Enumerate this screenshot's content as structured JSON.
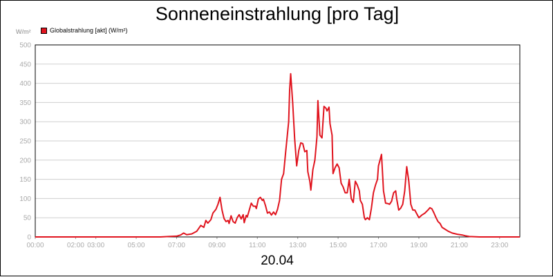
{
  "chart_data": {
    "type": "line",
    "title": "Sonneneinstrahlung [pro Tag]",
    "unit": "W/m²",
    "date": "20.04",
    "series": [
      {
        "name": "Globalstrahlung [akt] (W/m²)",
        "color": "#e0141e",
        "points": [
          [
            0,
            0
          ],
          [
            6.2,
            0
          ],
          [
            6.6,
            1
          ],
          [
            7.0,
            2
          ],
          [
            7.2,
            5
          ],
          [
            7.35,
            10
          ],
          [
            7.5,
            6
          ],
          [
            7.75,
            8
          ],
          [
            8.0,
            15
          ],
          [
            8.2,
            30
          ],
          [
            8.35,
            25
          ],
          [
            8.45,
            43
          ],
          [
            8.55,
            36
          ],
          [
            8.7,
            45
          ],
          [
            8.8,
            62
          ],
          [
            8.95,
            72
          ],
          [
            9.05,
            85
          ],
          [
            9.15,
            103
          ],
          [
            9.25,
            70
          ],
          [
            9.35,
            48
          ],
          [
            9.45,
            40
          ],
          [
            9.55,
            43
          ],
          [
            9.6,
            35
          ],
          [
            9.7,
            55
          ],
          [
            9.8,
            40
          ],
          [
            9.9,
            36
          ],
          [
            10.0,
            50
          ],
          [
            10.1,
            58
          ],
          [
            10.2,
            47
          ],
          [
            10.3,
            58
          ],
          [
            10.35,
            37
          ],
          [
            10.45,
            56
          ],
          [
            10.5,
            52
          ],
          [
            10.6,
            70
          ],
          [
            10.7,
            88
          ],
          [
            10.8,
            80
          ],
          [
            10.9,
            80
          ],
          [
            10.95,
            74
          ],
          [
            11.05,
            99
          ],
          [
            11.15,
            103
          ],
          [
            11.25,
            95
          ],
          [
            11.3,
            98
          ],
          [
            11.4,
            82
          ],
          [
            11.5,
            62
          ],
          [
            11.6,
            65
          ],
          [
            11.7,
            57
          ],
          [
            11.8,
            65
          ],
          [
            11.9,
            58
          ],
          [
            12.0,
            72
          ],
          [
            12.1,
            95
          ],
          [
            12.2,
            150
          ],
          [
            12.3,
            165
          ],
          [
            12.4,
            220
          ],
          [
            12.55,
            300
          ],
          [
            12.6,
            382
          ],
          [
            12.65,
            425
          ],
          [
            12.75,
            350
          ],
          [
            12.85,
            255
          ],
          [
            12.95,
            185
          ],
          [
            13.05,
            225
          ],
          [
            13.15,
            245
          ],
          [
            13.25,
            243
          ],
          [
            13.35,
            222
          ],
          [
            13.45,
            225
          ],
          [
            13.5,
            170
          ],
          [
            13.6,
            145
          ],
          [
            13.65,
            122
          ],
          [
            13.75,
            175
          ],
          [
            13.85,
            200
          ],
          [
            13.95,
            260
          ],
          [
            14.0,
            355
          ],
          [
            14.1,
            265
          ],
          [
            14.2,
            258
          ],
          [
            14.3,
            340
          ],
          [
            14.4,
            335
          ],
          [
            14.45,
            328
          ],
          [
            14.55,
            338
          ],
          [
            14.6,
            295
          ],
          [
            14.7,
            265
          ],
          [
            14.75,
            165
          ],
          [
            14.85,
            180
          ],
          [
            14.95,
            190
          ],
          [
            15.05,
            180
          ],
          [
            15.15,
            140
          ],
          [
            15.25,
            130
          ],
          [
            15.35,
            115
          ],
          [
            15.45,
            115
          ],
          [
            15.55,
            150
          ],
          [
            15.65,
            100
          ],
          [
            15.75,
            90
          ],
          [
            15.85,
            145
          ],
          [
            15.95,
            135
          ],
          [
            16.05,
            120
          ],
          [
            16.1,
            95
          ],
          [
            16.2,
            85
          ],
          [
            16.3,
            50
          ],
          [
            16.35,
            45
          ],
          [
            16.45,
            50
          ],
          [
            16.55,
            45
          ],
          [
            16.65,
            75
          ],
          [
            16.75,
            115
          ],
          [
            16.85,
            135
          ],
          [
            16.95,
            150
          ],
          [
            17.0,
            185
          ],
          [
            17.1,
            205
          ],
          [
            17.15,
            215
          ],
          [
            17.25,
            120
          ],
          [
            17.35,
            88
          ],
          [
            17.45,
            87
          ],
          [
            17.55,
            85
          ],
          [
            17.65,
            93
          ],
          [
            17.75,
            115
          ],
          [
            17.85,
            120
          ],
          [
            17.9,
            100
          ],
          [
            18.0,
            70
          ],
          [
            18.1,
            75
          ],
          [
            18.2,
            85
          ],
          [
            18.3,
            120
          ],
          [
            18.4,
            183
          ],
          [
            18.5,
            145
          ],
          [
            18.6,
            85
          ],
          [
            18.7,
            70
          ],
          [
            18.8,
            70
          ],
          [
            18.9,
            60
          ],
          [
            19.0,
            50
          ],
          [
            19.15,
            57
          ],
          [
            19.3,
            62
          ],
          [
            19.45,
            70
          ],
          [
            19.55,
            76
          ],
          [
            19.65,
            73
          ],
          [
            19.75,
            62
          ],
          [
            19.85,
            50
          ],
          [
            19.95,
            40
          ],
          [
            20.05,
            35
          ],
          [
            20.15,
            25
          ],
          [
            20.3,
            20
          ],
          [
            20.45,
            15
          ],
          [
            20.65,
            10
          ],
          [
            20.9,
            7
          ],
          [
            21.15,
            5
          ],
          [
            21.3,
            3
          ],
          [
            21.5,
            1
          ],
          [
            22.0,
            0
          ],
          [
            24,
            0
          ]
        ]
      }
    ],
    "xlim": [
      0,
      24
    ],
    "ylim": [
      0,
      500
    ],
    "yticks": [
      0,
      50,
      100,
      150,
      200,
      250,
      300,
      350,
      400,
      450,
      500
    ],
    "xticks": [
      {
        "value": 0,
        "label": "00:00"
      },
      {
        "value": 2,
        "label": "02:00"
      },
      {
        "value": 3,
        "label": "03:00"
      },
      {
        "value": 5,
        "label": "05:00"
      },
      {
        "value": 7,
        "label": "07:00"
      },
      {
        "value": 9,
        "label": "09:00"
      },
      {
        "value": 11,
        "label": "11:00"
      },
      {
        "value": 13,
        "label": "13:00"
      },
      {
        "value": 15,
        "label": "15:00"
      },
      {
        "value": 17,
        "label": "17:00"
      },
      {
        "value": 19,
        "label": "19:00"
      },
      {
        "value": 21,
        "label": "21:00"
      },
      {
        "value": 23,
        "label": "23:00"
      }
    ],
    "grid": true,
    "legend": "top-left"
  },
  "colors": {
    "series": "#e0141e",
    "grid": "#cfcfcf",
    "axis_text": "#aaaaaa"
  }
}
